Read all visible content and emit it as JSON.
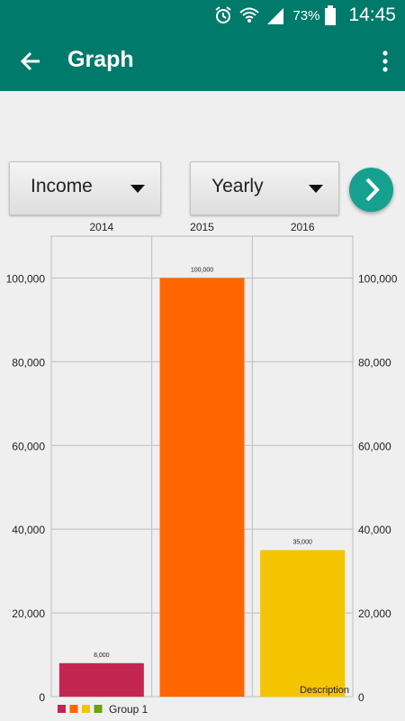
{
  "status_bar": {
    "battery_percent": "73%",
    "time": "14:45",
    "icons": [
      "alarm-icon",
      "wifi-icon",
      "signal-icon",
      "battery-icon"
    ]
  },
  "app_bar": {
    "title": "Graph",
    "back_icon": "arrow-back-icon",
    "menu_icon": "more-vert-icon"
  },
  "filters": {
    "type": {
      "selected": "Income"
    },
    "period": {
      "selected": "Yearly"
    },
    "next_icon": "chevron-right-icon"
  },
  "colors": {
    "primary": "#007a6b",
    "fab": "#16a08f"
  },
  "chart_data": {
    "type": "bar",
    "categories": [
      "2014",
      "2015",
      "2016"
    ],
    "series": [
      {
        "name": "Group 1",
        "values": [
          8000,
          100000,
          35000
        ]
      }
    ],
    "value_labels": [
      "8,000",
      "100,000",
      "35,000"
    ],
    "bar_colors": [
      "#c2254f",
      "#ff6600",
      "#f5c400"
    ],
    "legend_colors": [
      "#c2254f",
      "#ff6600",
      "#f5c400",
      "#6ea012"
    ],
    "ylim": [
      0,
      110000
    ],
    "yticks": [
      0,
      20000,
      40000,
      60000,
      80000,
      100000
    ],
    "ytick_labels": [
      "0",
      "20,000",
      "40,000",
      "60,000",
      "80,000",
      "100,000"
    ],
    "legend_placement": "bottom-left",
    "description": "Description",
    "grid": true
  }
}
